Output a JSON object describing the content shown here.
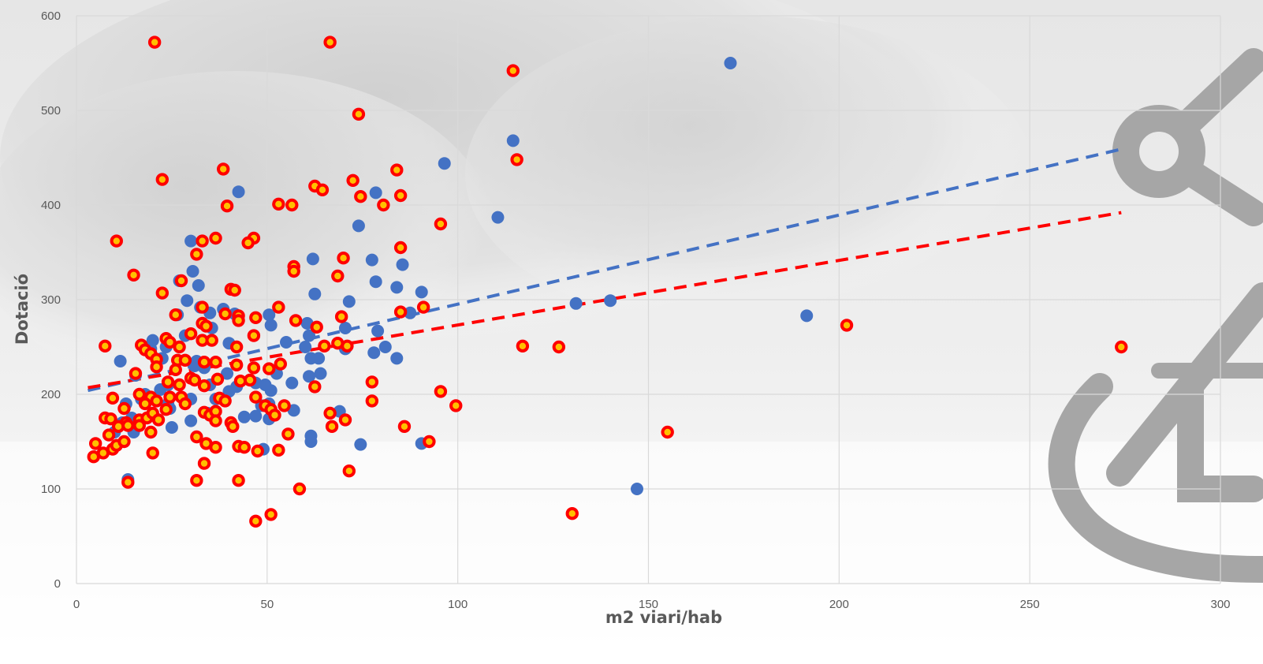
{
  "chart_data": {
    "type": "scatter",
    "title": "",
    "xlabel": "m2 viari/hab",
    "ylabel": "Dotació",
    "xlim": [
      0,
      300
    ],
    "ylim": [
      0,
      600
    ],
    "x_ticks": [
      0,
      50,
      100,
      150,
      200,
      250,
      300
    ],
    "y_ticks": [
      0,
      100,
      200,
      300,
      400,
      500,
      600
    ],
    "grid": true,
    "legend": "none",
    "colors": {
      "series_a": "#4472C4",
      "series_b": "#FF0000",
      "series_b_center": "#FFC000",
      "grid": "#D9D9D9",
      "text": "#595959"
    },
    "series": [
      {
        "marker": "filled-circle",
        "color": "#4472C4",
        "points": [
          [
            171.5,
            550
          ],
          [
            114.5,
            468
          ],
          [
            96.5,
            444
          ],
          [
            110.5,
            387
          ],
          [
            78.5,
            413
          ],
          [
            74,
            378
          ],
          [
            42.5,
            414
          ],
          [
            77.5,
            342
          ],
          [
            85.5,
            337
          ],
          [
            78.5,
            319
          ],
          [
            84,
            313
          ],
          [
            90.5,
            308
          ],
          [
            62,
            343
          ],
          [
            62.5,
            306
          ],
          [
            30,
            362
          ],
          [
            30.5,
            330
          ],
          [
            32,
            315
          ],
          [
            29,
            299
          ],
          [
            32.5,
            292
          ],
          [
            38.5,
            290
          ],
          [
            35,
            286
          ],
          [
            41.5,
            285
          ],
          [
            27,
            320
          ],
          [
            26.5,
            284
          ],
          [
            35.5,
            270
          ],
          [
            40,
            254
          ],
          [
            28.5,
            262
          ],
          [
            50.5,
            284
          ],
          [
            51,
            273
          ],
          [
            60.5,
            275
          ],
          [
            61,
            262
          ],
          [
            60,
            250
          ],
          [
            55,
            255
          ],
          [
            61.5,
            238
          ],
          [
            63.5,
            238
          ],
          [
            64,
            222
          ],
          [
            61,
            219
          ],
          [
            71.5,
            298
          ],
          [
            70.5,
            270
          ],
          [
            79,
            267
          ],
          [
            81,
            250
          ],
          [
            84,
            238
          ],
          [
            78,
            244
          ],
          [
            70.5,
            248
          ],
          [
            69,
            182
          ],
          [
            74.5,
            147
          ],
          [
            87.5,
            286
          ],
          [
            90.5,
            148
          ],
          [
            50.5,
            190
          ],
          [
            49.5,
            210
          ],
          [
            51,
            204
          ],
          [
            52.5,
            222
          ],
          [
            53.5,
            232
          ],
          [
            56.5,
            212
          ],
          [
            57,
            183
          ],
          [
            50.5,
            174
          ],
          [
            48.5,
            188
          ],
          [
            47,
            177
          ],
          [
            44,
            176
          ],
          [
            47,
            212
          ],
          [
            42,
            208
          ],
          [
            40,
            203
          ],
          [
            39.5,
            222
          ],
          [
            19.5,
            248
          ],
          [
            20,
            257
          ],
          [
            22.5,
            238
          ],
          [
            23.5,
            250
          ],
          [
            24,
            210
          ],
          [
            22,
            205
          ],
          [
            11.5,
            235
          ],
          [
            15.5,
            220
          ],
          [
            13,
            190
          ],
          [
            14.5,
            175
          ],
          [
            15,
            160
          ],
          [
            13.5,
            110
          ],
          [
            12,
            170
          ],
          [
            10,
            160
          ],
          [
            17,
            195
          ],
          [
            18,
            200
          ],
          [
            24,
            190
          ],
          [
            24.5,
            185
          ],
          [
            25,
            165
          ],
          [
            30,
            172
          ],
          [
            30,
            195
          ],
          [
            31,
            230
          ],
          [
            31.5,
            235
          ],
          [
            33.5,
            228
          ],
          [
            35,
            210
          ],
          [
            36.5,
            195
          ],
          [
            34.5,
            180
          ],
          [
            49,
            142
          ],
          [
            61.5,
            156
          ],
          [
            61.5,
            150
          ],
          [
            131,
            296
          ],
          [
            140,
            299
          ],
          [
            191.5,
            283
          ],
          [
            147,
            100
          ]
        ]
      },
      {
        "marker": "ring",
        "color": "#FF0000",
        "points": [
          [
            20.5,
            572
          ],
          [
            66.5,
            572
          ],
          [
            114.5,
            542
          ],
          [
            74,
            496
          ],
          [
            115.5,
            448
          ],
          [
            38.5,
            438
          ],
          [
            72.5,
            426
          ],
          [
            84,
            437
          ],
          [
            22.5,
            427
          ],
          [
            62.5,
            420
          ],
          [
            64.5,
            416
          ],
          [
            74.5,
            409
          ],
          [
            85,
            410
          ],
          [
            80.5,
            400
          ],
          [
            53,
            401
          ],
          [
            56.5,
            400
          ],
          [
            39.5,
            399
          ],
          [
            95.5,
            380
          ],
          [
            10.5,
            362
          ],
          [
            33,
            362
          ],
          [
            36.5,
            365
          ],
          [
            46.5,
            365
          ],
          [
            45,
            360
          ],
          [
            85,
            355
          ],
          [
            31.5,
            348
          ],
          [
            70,
            344
          ],
          [
            57,
            335
          ],
          [
            57,
            330
          ],
          [
            15,
            326
          ],
          [
            68.5,
            325
          ],
          [
            27.5,
            320
          ],
          [
            22.5,
            307
          ],
          [
            40.5,
            311
          ],
          [
            41.5,
            310
          ],
          [
            33,
            292
          ],
          [
            53,
            292
          ],
          [
            91,
            292
          ],
          [
            39,
            285
          ],
          [
            42.5,
            283
          ],
          [
            47,
            281
          ],
          [
            42.5,
            278
          ],
          [
            57.5,
            278
          ],
          [
            85,
            287
          ],
          [
            69.5,
            282
          ],
          [
            26,
            284
          ],
          [
            33,
            275
          ],
          [
            34,
            272
          ],
          [
            63,
            271
          ],
          [
            30,
            264
          ],
          [
            46.5,
            262
          ],
          [
            23.5,
            259
          ],
          [
            33,
            257
          ],
          [
            35.5,
            257
          ],
          [
            24.5,
            255
          ],
          [
            17,
            252
          ],
          [
            18,
            247
          ],
          [
            19.5,
            243
          ],
          [
            27,
            250
          ],
          [
            7.5,
            251
          ],
          [
            42,
            250
          ],
          [
            65,
            251
          ],
          [
            71,
            251
          ],
          [
            68.5,
            254
          ],
          [
            117,
            251
          ],
          [
            126.5,
            250
          ],
          [
            274,
            250
          ],
          [
            202,
            273
          ],
          [
            21,
            237
          ],
          [
            26.5,
            236
          ],
          [
            28.5,
            236
          ],
          [
            33.5,
            234
          ],
          [
            36.5,
            234
          ],
          [
            42,
            231
          ],
          [
            46.5,
            228
          ],
          [
            50.5,
            227
          ],
          [
            53.5,
            232
          ],
          [
            21,
            229
          ],
          [
            26,
            226
          ],
          [
            15.5,
            222
          ],
          [
            30,
            217
          ],
          [
            31,
            215
          ],
          [
            37,
            216
          ],
          [
            24,
            213
          ],
          [
            33.5,
            209
          ],
          [
            27,
            210
          ],
          [
            43,
            214
          ],
          [
            45.5,
            215
          ],
          [
            62.5,
            208
          ],
          [
            77.5,
            213
          ],
          [
            95.5,
            203
          ],
          [
            9.5,
            196
          ],
          [
            16.5,
            200
          ],
          [
            19.5,
            197
          ],
          [
            24.5,
            197
          ],
          [
            27.5,
            197
          ],
          [
            37.5,
            196
          ],
          [
            39,
            193
          ],
          [
            47,
            197
          ],
          [
            49.5,
            188
          ],
          [
            21,
            193
          ],
          [
            18,
            190
          ],
          [
            28.5,
            190
          ],
          [
            51,
            184
          ],
          [
            54.5,
            188
          ],
          [
            52,
            178
          ],
          [
            77.5,
            193
          ],
          [
            99.5,
            188
          ],
          [
            12.5,
            185
          ],
          [
            23.5,
            184
          ],
          [
            33.5,
            181
          ],
          [
            35,
            178
          ],
          [
            36.5,
            182
          ],
          [
            66.5,
            180
          ],
          [
            70.5,
            173
          ],
          [
            7.5,
            175
          ],
          [
            9,
            174
          ],
          [
            13,
            170
          ],
          [
            16.5,
            173
          ],
          [
            18.5,
            175
          ],
          [
            20,
            180
          ],
          [
            21.5,
            173
          ],
          [
            36.5,
            172
          ],
          [
            40.5,
            170
          ],
          [
            11,
            166
          ],
          [
            13.5,
            167
          ],
          [
            16.5,
            167
          ],
          [
            8.5,
            157
          ],
          [
            19.5,
            160
          ],
          [
            41,
            166
          ],
          [
            67,
            166
          ],
          [
            86,
            166
          ],
          [
            31.5,
            155
          ],
          [
            34,
            148
          ],
          [
            36.5,
            144
          ],
          [
            42.5,
            145
          ],
          [
            44,
            144
          ],
          [
            47.5,
            140
          ],
          [
            53,
            141
          ],
          [
            55.5,
            158
          ],
          [
            92.5,
            150
          ],
          [
            155,
            160
          ],
          [
            5,
            148
          ],
          [
            9.5,
            142
          ],
          [
            10.5,
            146
          ],
          [
            12.5,
            150
          ],
          [
            7,
            138
          ],
          [
            4.5,
            134
          ],
          [
            20,
            138
          ],
          [
            33.5,
            127
          ],
          [
            13.5,
            107
          ],
          [
            31.5,
            109
          ],
          [
            42.5,
            109
          ],
          [
            71.5,
            119
          ],
          [
            58.5,
            100
          ],
          [
            47,
            66
          ],
          [
            51,
            73
          ],
          [
            130,
            74
          ]
        ]
      }
    ],
    "trendlines": [
      {
        "color": "#4472C4",
        "style": "dashed",
        "from": [
          3,
          204
        ],
        "to": [
          274,
          459
        ]
      },
      {
        "color": "#FF0000",
        "style": "dashed",
        "from": [
          3,
          207
        ],
        "to": [
          274,
          392
        ]
      }
    ]
  }
}
